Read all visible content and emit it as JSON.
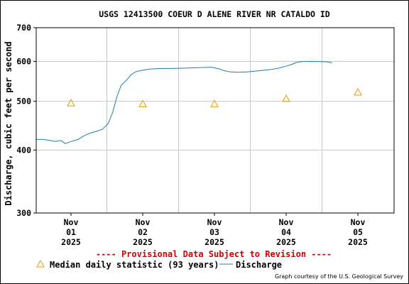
{
  "chart_data": {
    "type": "line",
    "title": "USGS 12413500 COEUR D ALENE RIVER NR CATALDO ID",
    "ylabel": "Discharge, cubic feet per second",
    "xlabel": "",
    "y_scale": "log",
    "ylim": [
      300,
      700
    ],
    "y_ticks": [
      300,
      400,
      500,
      600,
      700
    ],
    "y_tick_labels": [
      "300",
      "400",
      "500",
      "600",
      "700"
    ],
    "x_ticks": [
      {
        "day": 0,
        "label_line1": "Nov",
        "label_line2": "01",
        "label_line3": "2025"
      },
      {
        "day": 1,
        "label_line1": "Nov",
        "label_line2": "02",
        "label_line3": "2025"
      },
      {
        "day": 2,
        "label_line1": "Nov",
        "label_line2": "03",
        "label_line3": "2025"
      },
      {
        "day": 3,
        "label_line1": "Nov",
        "label_line2": "04",
        "label_line3": "2025"
      },
      {
        "day": 4,
        "label_line1": "Nov",
        "label_line2": "05",
        "label_line3": "2025"
      }
    ],
    "grid": true,
    "series": [
      {
        "name": "Discharge",
        "color": "#1e7fa8",
        "x": [
          -0.48,
          -0.38,
          -0.3,
          -0.22,
          -0.14,
          -0.08,
          0.0,
          0.1,
          0.18,
          0.26,
          0.34,
          0.44,
          0.52,
          0.58,
          0.64,
          0.7,
          0.78,
          0.84,
          0.9,
          0.96,
          1.02,
          1.08,
          1.16,
          1.26,
          1.4,
          1.6,
          1.8,
          1.96,
          2.06,
          2.14,
          2.22,
          2.32,
          2.46,
          2.62,
          2.78,
          2.9,
          3.0,
          3.08,
          3.14,
          3.24,
          3.4,
          3.56,
          3.64
        ],
        "y": [
          420,
          420,
          418,
          416,
          418,
          412,
          416,
          420,
          427,
          432,
          435,
          440,
          452,
          475,
          510,
          538,
          552,
          565,
          572,
          575,
          577,
          579,
          580,
          581,
          581,
          582,
          583,
          584,
          580,
          575,
          572,
          571,
          572,
          575,
          578,
          582,
          587,
          592,
          597,
          600,
          600,
          599,
          596
        ]
      },
      {
        "name": "Median daily statistic (93 years)",
        "color": "#e0a000",
        "marker": "triangle",
        "x": [
          0,
          1,
          2,
          3,
          4
        ],
        "y": [
          496,
          494,
          494,
          506,
          521
        ]
      }
    ],
    "legend": {
      "placement": "bottom",
      "entries": [
        {
          "label": "Median daily statistic (93 years)",
          "marker": "triangle",
          "color": "#e0a000"
        },
        {
          "label": "Discharge",
          "marker": "line",
          "color": "#1e7fa8"
        }
      ]
    },
    "annotations": {
      "provisional": "---- Provisional Data Subject to Revision ----",
      "credit": "Graph courtesy of the U.S. Geological Survey"
    }
  }
}
